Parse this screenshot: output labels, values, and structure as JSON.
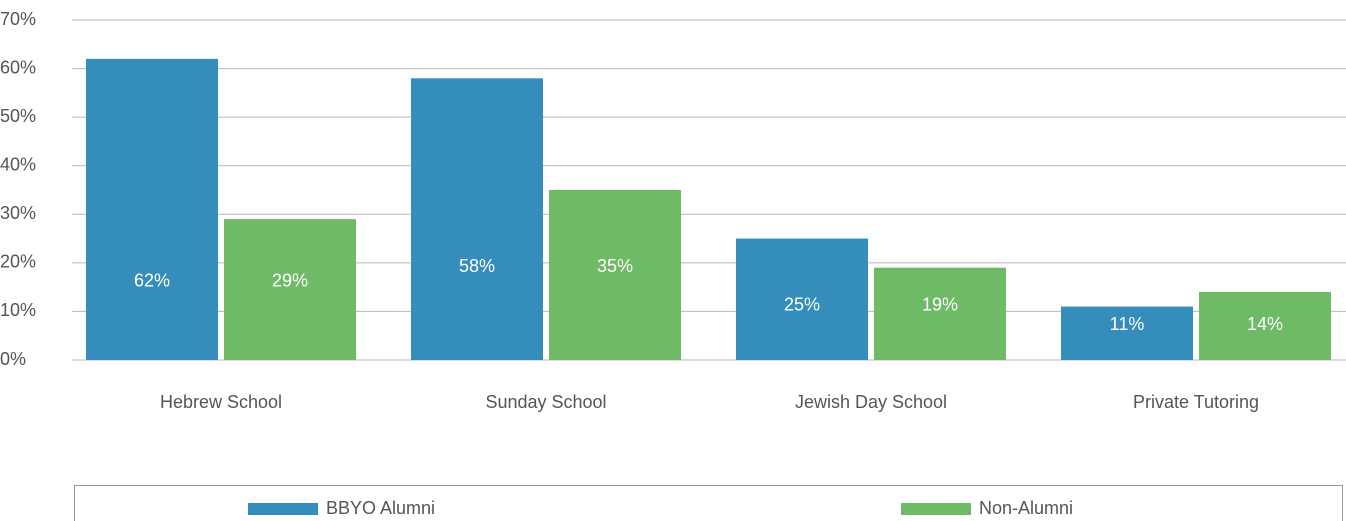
{
  "chart_data": {
    "type": "bar",
    "categories": [
      "Hebrew School",
      "Sunday School",
      "Jewish Day School",
      "Private Tutoring"
    ],
    "series": [
      {
        "name": "BBYO Alumni",
        "color": "#358dbb",
        "values": [
          62,
          58,
          25,
          11
        ],
        "value_labels": [
          "62%",
          "58%",
          "25%",
          "11%"
        ]
      },
      {
        "name": "Non-Alumni",
        "color": "#6fba65",
        "values": [
          29,
          35,
          19,
          14
        ],
        "value_labels": [
          "29%",
          "35%",
          "19%",
          "14%"
        ]
      }
    ],
    "ylim": [
      0,
      70
    ],
    "yticks": [
      {
        "value": 0,
        "label": "0%"
      },
      {
        "value": 10,
        "label": "10%"
      },
      {
        "value": 20,
        "label": "20%"
      },
      {
        "value": 30,
        "label": "30%"
      },
      {
        "value": 40,
        "label": "40%"
      },
      {
        "value": 50,
        "label": "50%"
      },
      {
        "value": 60,
        "label": "60%"
      },
      {
        "value": 70,
        "label": "70%"
      }
    ],
    "grid": true,
    "legend": "bottom"
  }
}
